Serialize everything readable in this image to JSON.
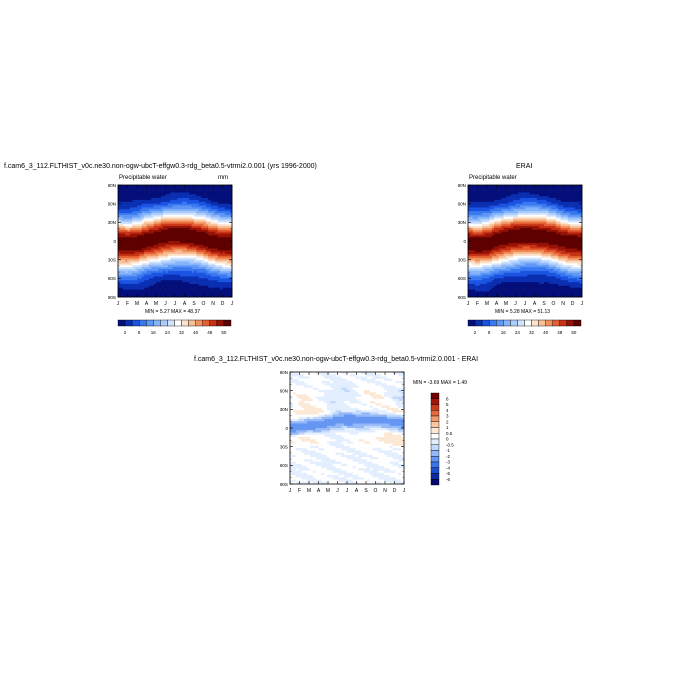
{
  "colors": {
    "seq": [
      "#040F7A",
      "#0B2FB1",
      "#1B53E2",
      "#3A78F0",
      "#5E97F6",
      "#86B4FA",
      "#ACCDFC",
      "#D0E3FE",
      "#FFFFFF",
      "#FCE3CC",
      "#F8BE96",
      "#F0915E",
      "#E45F32",
      "#C73115",
      "#961205",
      "#5E0000"
    ],
    "diff": [
      "#06086E",
      "#0C2BA2",
      "#1B4DD1",
      "#3B74EB",
      "#6596F2",
      "#94B8F8",
      "#C2D8FC",
      "#E3EEFE",
      "#FFFFFF",
      "#FDE8D5",
      "#F9C6A2",
      "#F09B6E",
      "#E26A40",
      "#C93A1E",
      "#A1140A",
      "#700000"
    ]
  },
  "chart_data": [
    {
      "type": "heatmap",
      "title": "f.cam6_3_112.FLTHIST_v0c.ne30.non-ogw-ubcT-effgw0.3-rdg_beta0.5-vtrmi2.0.001 (yrs 1996-2000)",
      "left_label": "Precipitable water",
      "units": "mm",
      "x_ticks": [
        "J",
        "F",
        "M",
        "A",
        "M",
        "J",
        "J",
        "A",
        "S",
        "O",
        "N",
        "D",
        "J"
      ],
      "y_ticks": [
        "90N",
        "60N",
        "30N",
        "0",
        "30S",
        "60S",
        "90S"
      ],
      "ylim": [
        -90,
        90
      ],
      "min": "5.27",
      "max": "48.37",
      "minmax_text": "MIN =  5.27 MAX =  48.37",
      "colorbar_labels": [
        "2",
        "8",
        "16",
        "24",
        "32",
        "40",
        "48",
        "50"
      ],
      "field": {
        "peak": 48.37,
        "min_value": 5.27,
        "itcz_center_lat": [
          -4,
          -5,
          -3,
          2,
          5,
          8,
          10,
          10,
          8,
          5,
          0,
          -3,
          -4
        ]
      }
    },
    {
      "type": "heatmap",
      "title": "ERAI",
      "left_label": "Precipitable water",
      "units": "",
      "x_ticks": [
        "J",
        "F",
        "M",
        "A",
        "M",
        "J",
        "J",
        "A",
        "S",
        "O",
        "N",
        "D",
        "J"
      ],
      "y_ticks": [
        "90N",
        "60N",
        "30N",
        "0",
        "30S",
        "60S",
        "90S"
      ],
      "ylim": [
        -90,
        90
      ],
      "min": "5.28",
      "max": "51.13",
      "minmax_text": "MIN =  5.28 MAX =  51.13",
      "colorbar_labels": [
        "2",
        "8",
        "16",
        "24",
        "32",
        "40",
        "48",
        "50"
      ],
      "field": {
        "peak": 51.13,
        "min_value": 5.28,
        "itcz_center_lat": [
          -4,
          -5,
          -3,
          2,
          5,
          8,
          10,
          10,
          8,
          5,
          0,
          -3,
          -4
        ]
      }
    },
    {
      "type": "heatmap",
      "title": "f.cam6_3_112.FLTHIST_v0c.ne30.non-ogw-ubcT-effgw0.3-rdg_beta0.5-vtrmi2.0.001 - ERAI",
      "x_ticks": [
        "J",
        "F",
        "M",
        "A",
        "M",
        "J",
        "J",
        "A",
        "S",
        "O",
        "N",
        "D",
        "J"
      ],
      "y_ticks": [
        "90N",
        "60N",
        "30N",
        "0",
        "30S",
        "60S",
        "90S"
      ],
      "ylim": [
        -90,
        90
      ],
      "min": "-3.69",
      "max": "1.49",
      "minmax_text": "MIN =  -3.69 MAX =   1.49",
      "colorbar_labels": [
        "6",
        "5",
        "4",
        "3",
        "2",
        "1",
        "0.5",
        "0",
        "-0.5",
        "-1",
        "-2",
        "-3",
        "-4",
        "-5",
        "-6"
      ]
    }
  ]
}
